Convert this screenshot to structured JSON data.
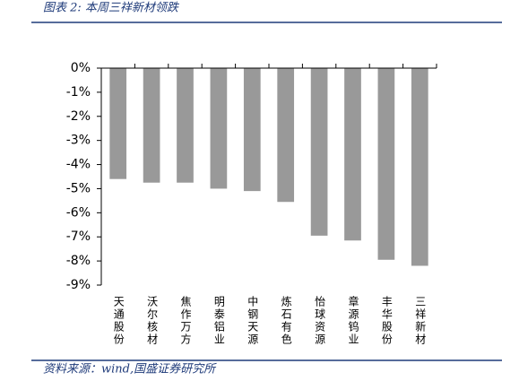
{
  "chart_data": {
    "type": "bar",
    "title": "图表 2:  本周三祥新材领跌",
    "source": "资料来源：wind,国盛证券研究所",
    "categories": [
      "天通股份",
      "沃尔核材",
      "焦作万方",
      "明泰铝业",
      "中钢天源",
      "炼石有色",
      "怡球资源",
      "章源钨业",
      "丰华股份",
      "三祥新材"
    ],
    "values": [
      -4.6,
      -4.75,
      -4.75,
      -5.0,
      -5.1,
      -5.55,
      -6.95,
      -7.15,
      -7.95,
      -8.2
    ],
    "color": "#999999",
    "ylim": [
      -9,
      0
    ],
    "yticks": [
      {
        "value": 0,
        "label": "0%"
      },
      {
        "value": -1,
        "label": "-1%"
      },
      {
        "value": -2,
        "label": "-2%"
      },
      {
        "value": -3,
        "label": "-3%"
      },
      {
        "value": -4,
        "label": "-4%"
      },
      {
        "value": -5,
        "label": "-5%"
      },
      {
        "value": -6,
        "label": "-6%"
      },
      {
        "value": -7,
        "label": "-7%"
      },
      {
        "value": -8,
        "label": "-8%"
      },
      {
        "value": -9,
        "label": "-9%"
      }
    ],
    "grid": false
  }
}
